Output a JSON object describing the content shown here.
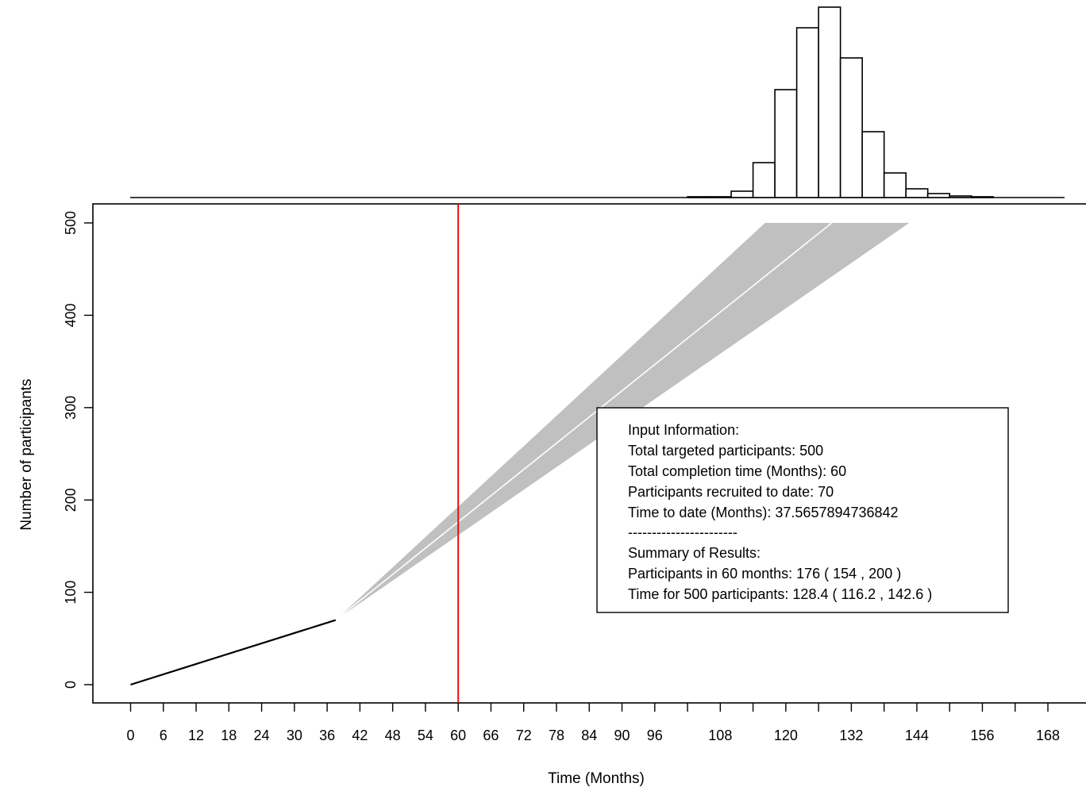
{
  "chart_data": {
    "type": "line",
    "xlabel": "Time (Months)",
    "ylabel": "Number of participants",
    "xlim": [
      -2,
      176
    ],
    "ylim": [
      -20,
      520
    ],
    "x_ticks": [
      0,
      6,
      12,
      18,
      24,
      30,
      36,
      42,
      48,
      54,
      60,
      66,
      72,
      78,
      84,
      90,
      96,
      102,
      108,
      114,
      120,
      126,
      132,
      138,
      144,
      150,
      156,
      162,
      168
    ],
    "x_tick_labels": [
      "0",
      "6",
      "12",
      "18",
      "24",
      "30",
      "36",
      "42",
      "48",
      "54",
      "60",
      "66",
      "72",
      "78",
      "84",
      "90",
      "96",
      "",
      "108",
      "",
      "120",
      "",
      "132",
      "",
      "144",
      "",
      "156",
      "",
      "168"
    ],
    "y_ticks": [
      0,
      100,
      200,
      300,
      400,
      500
    ],
    "y_tick_labels": [
      "0",
      "100",
      "200",
      "300",
      "400",
      "500"
    ],
    "observed": {
      "x": [
        0,
        37.5657894736842
      ],
      "y": [
        0,
        70
      ]
    },
    "prediction_band": {
      "start": [
        37.5657894736842,
        70
      ],
      "upper_end": [
        116.2,
        500
      ],
      "lower_end": [
        142.6,
        500
      ],
      "color": "#c0c0c0"
    },
    "median_line": {
      "x": [
        37.5657894736842,
        128.4
      ],
      "y": [
        70,
        500
      ],
      "color": "#ffffff"
    },
    "target_time_line": {
      "x": 60,
      "color": "#e8100c"
    },
    "histogram": {
      "bin_edges": [
        102,
        106,
        110,
        114,
        118,
        122,
        126,
        130,
        134,
        138,
        142,
        146,
        150,
        154,
        158,
        162,
        166,
        170
      ],
      "bar_fill": "#ffffff",
      "bar_stroke": "#000000"
    },
    "legend_box": {
      "lines": [
        "Input Information:",
        "Total targeted participants: 500",
        "Total completion time (Months): 60",
        "Participants recruited to date: 70",
        "Time to date (Months): 37.5657894736842",
        "-----------------------",
        "Summary of Results:",
        "Participants in 60 months: 176 ( 154 , 200 )",
        "Time for 500 participants: 128.4 ( 116.2 , 142.6 )"
      ]
    }
  }
}
